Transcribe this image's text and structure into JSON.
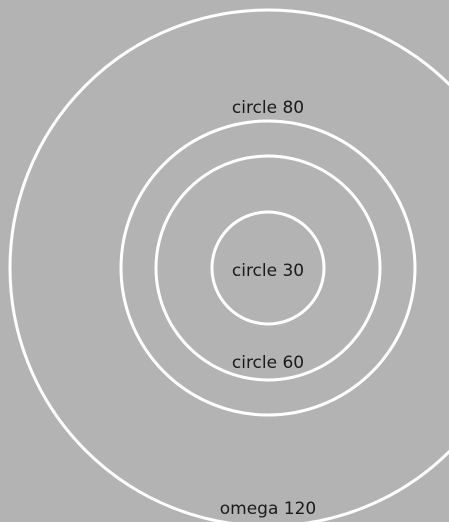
{
  "diagram": {
    "background_color": "#b3b3b3",
    "stroke_color": "#ffffff",
    "label_color": "#1a1a1a",
    "rings": [
      {
        "id": "omega-120",
        "label": "omega 120"
      },
      {
        "id": "circle-80",
        "label": "circle 80"
      },
      {
        "id": "circle-60",
        "label": "circle 60"
      },
      {
        "id": "circle-30",
        "label": "circle 30"
      }
    ]
  }
}
